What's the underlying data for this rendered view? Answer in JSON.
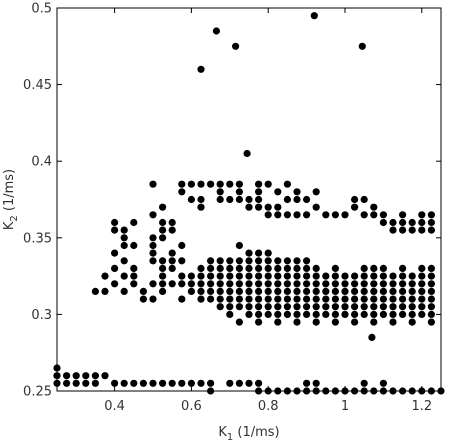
{
  "chart_data": {
    "type": "scatter",
    "title": "",
    "xlabel": {
      "main": "K",
      "sub": "1",
      "unit": " (1/ms)"
    },
    "ylabel": {
      "main": "K",
      "sub": "2",
      "unit": " (1/ms)"
    },
    "xlim": [
      0.25,
      1.25
    ],
    "ylim": [
      0.25,
      0.5
    ],
    "xticks": [
      {
        "value": 0.4,
        "label": "0.4"
      },
      {
        "value": 0.6,
        "label": "0.6"
      },
      {
        "value": 0.8,
        "label": "0.8"
      },
      {
        "value": 1.0,
        "label": "1"
      },
      {
        "value": 1.2,
        "label": "1.2"
      }
    ],
    "yticks": [
      {
        "value": 0.25,
        "label": "0.25"
      },
      {
        "value": 0.3,
        "label": "0.3"
      },
      {
        "value": 0.35,
        "label": "0.35"
      },
      {
        "value": 0.4,
        "label": "0.4"
      },
      {
        "value": 0.45,
        "label": "0.45"
      },
      {
        "value": 0.5,
        "label": "0.5"
      }
    ],
    "grid": false,
    "legend": "none",
    "point_color": "#000000",
    "points": [
      [
        0.92,
        0.495
      ],
      [
        0.665,
        0.485
      ],
      [
        1.045,
        0.475
      ],
      [
        0.715,
        0.475
      ],
      [
        0.625,
        0.46
      ],
      [
        0.745,
        0.405
      ],
      [
        0.5,
        0.385
      ],
      [
        0.575,
        0.385
      ],
      [
        0.6,
        0.385
      ],
      [
        0.625,
        0.385
      ],
      [
        0.65,
        0.385
      ],
      [
        0.675,
        0.385
      ],
      [
        0.7,
        0.385
      ],
      [
        0.725,
        0.385
      ],
      [
        0.775,
        0.385
      ],
      [
        0.8,
        0.385
      ],
      [
        0.85,
        0.385
      ],
      [
        0.575,
        0.38
      ],
      [
        0.675,
        0.38
      ],
      [
        0.725,
        0.38
      ],
      [
        0.775,
        0.38
      ],
      [
        0.825,
        0.38
      ],
      [
        0.875,
        0.38
      ],
      [
        0.925,
        0.38
      ],
      [
        0.6,
        0.375
      ],
      [
        0.625,
        0.375
      ],
      [
        0.675,
        0.375
      ],
      [
        0.7,
        0.375
      ],
      [
        0.725,
        0.375
      ],
      [
        0.75,
        0.375
      ],
      [
        0.775,
        0.375
      ],
      [
        0.85,
        0.375
      ],
      [
        0.875,
        0.375
      ],
      [
        0.9,
        0.375
      ],
      [
        1.025,
        0.375
      ],
      [
        1.05,
        0.375
      ],
      [
        0.525,
        0.37
      ],
      [
        0.625,
        0.37
      ],
      [
        0.75,
        0.37
      ],
      [
        0.775,
        0.37
      ],
      [
        0.8,
        0.37
      ],
      [
        0.825,
        0.37
      ],
      [
        0.925,
        0.37
      ],
      [
        1.025,
        0.37
      ],
      [
        1.075,
        0.37
      ],
      [
        0.5,
        0.365
      ],
      [
        0.8,
        0.365
      ],
      [
        0.825,
        0.365
      ],
      [
        0.85,
        0.365
      ],
      [
        0.875,
        0.365
      ],
      [
        0.9,
        0.365
      ],
      [
        0.95,
        0.365
      ],
      [
        0.975,
        0.365
      ],
      [
        1.0,
        0.365
      ],
      [
        1.05,
        0.365
      ],
      [
        1.075,
        0.365
      ],
      [
        1.1,
        0.365
      ],
      [
        1.15,
        0.365
      ],
      [
        1.2,
        0.365
      ],
      [
        1.225,
        0.365
      ],
      [
        0.4,
        0.36
      ],
      [
        0.45,
        0.36
      ],
      [
        0.525,
        0.36
      ],
      [
        0.55,
        0.36
      ],
      [
        1.1,
        0.36
      ],
      [
        1.125,
        0.36
      ],
      [
        1.15,
        0.36
      ],
      [
        1.175,
        0.36
      ],
      [
        1.2,
        0.36
      ],
      [
        1.225,
        0.36
      ],
      [
        0.4,
        0.355
      ],
      [
        0.425,
        0.355
      ],
      [
        0.525,
        0.355
      ],
      [
        0.55,
        0.355
      ],
      [
        1.125,
        0.355
      ],
      [
        1.15,
        0.355
      ],
      [
        1.175,
        0.355
      ],
      [
        1.2,
        0.355
      ],
      [
        1.225,
        0.355
      ],
      [
        0.425,
        0.35
      ],
      [
        0.5,
        0.35
      ],
      [
        0.525,
        0.35
      ],
      [
        0.425,
        0.345
      ],
      [
        0.45,
        0.345
      ],
      [
        0.5,
        0.345
      ],
      [
        0.575,
        0.345
      ],
      [
        0.725,
        0.345
      ],
      [
        0.4,
        0.34
      ],
      [
        0.5,
        0.34
      ],
      [
        0.55,
        0.34
      ],
      [
        0.75,
        0.34
      ],
      [
        0.775,
        0.34
      ],
      [
        0.8,
        0.34
      ],
      [
        0.425,
        0.335
      ],
      [
        0.5,
        0.335
      ],
      [
        0.525,
        0.335
      ],
      [
        0.55,
        0.335
      ],
      [
        0.575,
        0.335
      ],
      [
        0.65,
        0.335
      ],
      [
        0.675,
        0.335
      ],
      [
        0.7,
        0.335
      ],
      [
        0.725,
        0.335
      ],
      [
        0.75,
        0.335
      ],
      [
        0.775,
        0.335
      ],
      [
        0.8,
        0.335
      ],
      [
        0.825,
        0.335
      ],
      [
        0.85,
        0.335
      ],
      [
        0.875,
        0.335
      ],
      [
        0.9,
        0.335
      ],
      [
        0.4,
        0.33
      ],
      [
        0.45,
        0.33
      ],
      [
        0.525,
        0.33
      ],
      [
        0.55,
        0.33
      ],
      [
        0.625,
        0.33
      ],
      [
        0.65,
        0.33
      ],
      [
        0.675,
        0.33
      ],
      [
        0.7,
        0.33
      ],
      [
        0.725,
        0.33
      ],
      [
        0.75,
        0.33
      ],
      [
        0.775,
        0.33
      ],
      [
        0.8,
        0.33
      ],
      [
        0.825,
        0.33
      ],
      [
        0.85,
        0.33
      ],
      [
        0.875,
        0.33
      ],
      [
        0.9,
        0.33
      ],
      [
        0.925,
        0.33
      ],
      [
        0.975,
        0.33
      ],
      [
        1.05,
        0.33
      ],
      [
        1.075,
        0.33
      ],
      [
        1.1,
        0.33
      ],
      [
        1.15,
        0.33
      ],
      [
        1.2,
        0.33
      ],
      [
        1.225,
        0.33
      ],
      [
        0.375,
        0.325
      ],
      [
        0.425,
        0.325
      ],
      [
        0.45,
        0.325
      ],
      [
        0.525,
        0.325
      ],
      [
        0.575,
        0.325
      ],
      [
        0.6,
        0.325
      ],
      [
        0.625,
        0.325
      ],
      [
        0.65,
        0.325
      ],
      [
        0.675,
        0.325
      ],
      [
        0.7,
        0.325
      ],
      [
        0.725,
        0.325
      ],
      [
        0.75,
        0.325
      ],
      [
        0.775,
        0.325
      ],
      [
        0.8,
        0.325
      ],
      [
        0.825,
        0.325
      ],
      [
        0.85,
        0.325
      ],
      [
        0.875,
        0.325
      ],
      [
        0.9,
        0.325
      ],
      [
        0.925,
        0.325
      ],
      [
        0.95,
        0.325
      ],
      [
        0.975,
        0.325
      ],
      [
        1.0,
        0.325
      ],
      [
        1.025,
        0.325
      ],
      [
        1.05,
        0.325
      ],
      [
        1.075,
        0.325
      ],
      [
        1.1,
        0.325
      ],
      [
        1.125,
        0.325
      ],
      [
        1.15,
        0.325
      ],
      [
        1.175,
        0.325
      ],
      [
        1.2,
        0.325
      ],
      [
        1.225,
        0.325
      ],
      [
        0.4,
        0.32
      ],
      [
        0.45,
        0.32
      ],
      [
        0.5,
        0.32
      ],
      [
        0.525,
        0.32
      ],
      [
        0.55,
        0.32
      ],
      [
        0.575,
        0.32
      ],
      [
        0.6,
        0.32
      ],
      [
        0.625,
        0.32
      ],
      [
        0.65,
        0.32
      ],
      [
        0.675,
        0.32
      ],
      [
        0.7,
        0.32
      ],
      [
        0.725,
        0.32
      ],
      [
        0.75,
        0.32
      ],
      [
        0.775,
        0.32
      ],
      [
        0.8,
        0.32
      ],
      [
        0.825,
        0.32
      ],
      [
        0.85,
        0.32
      ],
      [
        0.875,
        0.32
      ],
      [
        0.9,
        0.32
      ],
      [
        0.925,
        0.32
      ],
      [
        0.95,
        0.32
      ],
      [
        0.975,
        0.32
      ],
      [
        1.0,
        0.32
      ],
      [
        1.025,
        0.32
      ],
      [
        1.05,
        0.32
      ],
      [
        1.075,
        0.32
      ],
      [
        1.1,
        0.32
      ],
      [
        1.125,
        0.32
      ],
      [
        1.15,
        0.32
      ],
      [
        1.175,
        0.32
      ],
      [
        1.2,
        0.32
      ],
      [
        1.225,
        0.32
      ],
      [
        0.35,
        0.315
      ],
      [
        0.375,
        0.315
      ],
      [
        0.425,
        0.315
      ],
      [
        0.475,
        0.315
      ],
      [
        0.525,
        0.315
      ],
      [
        0.6,
        0.315
      ],
      [
        0.625,
        0.315
      ],
      [
        0.65,
        0.315
      ],
      [
        0.675,
        0.315
      ],
      [
        0.7,
        0.315
      ],
      [
        0.725,
        0.315
      ],
      [
        0.75,
        0.315
      ],
      [
        0.775,
        0.315
      ],
      [
        0.8,
        0.315
      ],
      [
        0.825,
        0.315
      ],
      [
        0.85,
        0.315
      ],
      [
        0.875,
        0.315
      ],
      [
        0.9,
        0.315
      ],
      [
        0.925,
        0.315
      ],
      [
        0.95,
        0.315
      ],
      [
        0.975,
        0.315
      ],
      [
        1.0,
        0.315
      ],
      [
        1.025,
        0.315
      ],
      [
        1.05,
        0.315
      ],
      [
        1.075,
        0.315
      ],
      [
        1.1,
        0.315
      ],
      [
        1.125,
        0.315
      ],
      [
        1.15,
        0.315
      ],
      [
        1.175,
        0.315
      ],
      [
        1.2,
        0.315
      ],
      [
        1.225,
        0.315
      ],
      [
        0.475,
        0.31
      ],
      [
        0.5,
        0.31
      ],
      [
        0.575,
        0.31
      ],
      [
        0.625,
        0.31
      ],
      [
        0.65,
        0.31
      ],
      [
        0.675,
        0.31
      ],
      [
        0.7,
        0.31
      ],
      [
        0.725,
        0.31
      ],
      [
        0.75,
        0.31
      ],
      [
        0.775,
        0.31
      ],
      [
        0.8,
        0.31
      ],
      [
        0.825,
        0.31
      ],
      [
        0.85,
        0.31
      ],
      [
        0.875,
        0.31
      ],
      [
        0.9,
        0.31
      ],
      [
        0.925,
        0.31
      ],
      [
        0.95,
        0.31
      ],
      [
        0.975,
        0.31
      ],
      [
        1.0,
        0.31
      ],
      [
        1.025,
        0.31
      ],
      [
        1.05,
        0.31
      ],
      [
        1.075,
        0.31
      ],
      [
        1.1,
        0.31
      ],
      [
        1.125,
        0.31
      ],
      [
        1.15,
        0.31
      ],
      [
        1.175,
        0.31
      ],
      [
        1.2,
        0.31
      ],
      [
        1.225,
        0.31
      ],
      [
        0.675,
        0.305
      ],
      [
        0.7,
        0.305
      ],
      [
        0.725,
        0.305
      ],
      [
        0.75,
        0.305
      ],
      [
        0.775,
        0.305
      ],
      [
        0.8,
        0.305
      ],
      [
        0.825,
        0.305
      ],
      [
        0.85,
        0.305
      ],
      [
        0.875,
        0.305
      ],
      [
        0.9,
        0.305
      ],
      [
        0.925,
        0.305
      ],
      [
        0.95,
        0.305
      ],
      [
        0.975,
        0.305
      ],
      [
        1.0,
        0.305
      ],
      [
        1.025,
        0.305
      ],
      [
        1.05,
        0.305
      ],
      [
        1.075,
        0.305
      ],
      [
        1.1,
        0.305
      ],
      [
        1.125,
        0.305
      ],
      [
        1.15,
        0.305
      ],
      [
        1.175,
        0.305
      ],
      [
        1.2,
        0.305
      ],
      [
        1.225,
        0.305
      ],
      [
        0.7,
        0.3
      ],
      [
        0.75,
        0.3
      ],
      [
        0.775,
        0.3
      ],
      [
        0.8,
        0.3
      ],
      [
        0.825,
        0.3
      ],
      [
        0.85,
        0.3
      ],
      [
        0.875,
        0.3
      ],
      [
        0.9,
        0.3
      ],
      [
        0.925,
        0.3
      ],
      [
        0.95,
        0.3
      ],
      [
        0.975,
        0.3
      ],
      [
        1.0,
        0.3
      ],
      [
        1.025,
        0.3
      ],
      [
        1.05,
        0.3
      ],
      [
        1.075,
        0.3
      ],
      [
        1.1,
        0.3
      ],
      [
        1.125,
        0.3
      ],
      [
        1.15,
        0.3
      ],
      [
        1.175,
        0.3
      ],
      [
        1.2,
        0.3
      ],
      [
        1.225,
        0.3
      ],
      [
        0.725,
        0.295
      ],
      [
        0.775,
        0.295
      ],
      [
        0.825,
        0.295
      ],
      [
        0.875,
        0.295
      ],
      [
        0.925,
        0.295
      ],
      [
        0.975,
        0.295
      ],
      [
        1.025,
        0.295
      ],
      [
        1.075,
        0.295
      ],
      [
        1.125,
        0.295
      ],
      [
        1.175,
        0.295
      ],
      [
        1.225,
        0.295
      ],
      [
        1.07,
        0.285
      ],
      [
        0.25,
        0.265
      ],
      [
        0.25,
        0.26
      ],
      [
        0.275,
        0.26
      ],
      [
        0.3,
        0.26
      ],
      [
        0.325,
        0.26
      ],
      [
        0.35,
        0.26
      ],
      [
        0.375,
        0.26
      ],
      [
        0.25,
        0.255
      ],
      [
        0.275,
        0.255
      ],
      [
        0.3,
        0.255
      ],
      [
        0.325,
        0.255
      ],
      [
        0.35,
        0.255
      ],
      [
        0.4,
        0.255
      ],
      [
        0.425,
        0.255
      ],
      [
        0.45,
        0.255
      ],
      [
        0.475,
        0.255
      ],
      [
        0.5,
        0.255
      ],
      [
        0.525,
        0.255
      ],
      [
        0.55,
        0.255
      ],
      [
        0.575,
        0.255
      ],
      [
        0.6,
        0.255
      ],
      [
        0.625,
        0.255
      ],
      [
        0.65,
        0.255
      ],
      [
        0.7,
        0.255
      ],
      [
        0.725,
        0.255
      ],
      [
        0.75,
        0.255
      ],
      [
        0.775,
        0.255
      ],
      [
        0.9,
        0.255
      ],
      [
        0.925,
        0.255
      ],
      [
        1.05,
        0.255
      ],
      [
        1.1,
        0.255
      ],
      [
        0.65,
        0.25
      ],
      [
        0.775,
        0.25
      ],
      [
        0.8,
        0.25
      ],
      [
        0.825,
        0.25
      ],
      [
        0.85,
        0.25
      ],
      [
        0.875,
        0.25
      ],
      [
        0.9,
        0.25
      ],
      [
        0.925,
        0.25
      ],
      [
        0.95,
        0.25
      ],
      [
        0.975,
        0.25
      ],
      [
        1.0,
        0.25
      ],
      [
        1.025,
        0.25
      ],
      [
        1.05,
        0.25
      ],
      [
        1.075,
        0.25
      ],
      [
        1.1,
        0.25
      ],
      [
        1.125,
        0.25
      ],
      [
        1.15,
        0.25
      ],
      [
        1.175,
        0.25
      ],
      [
        1.2,
        0.25
      ],
      [
        1.225,
        0.25
      ],
      [
        1.25,
        0.25
      ]
    ]
  }
}
